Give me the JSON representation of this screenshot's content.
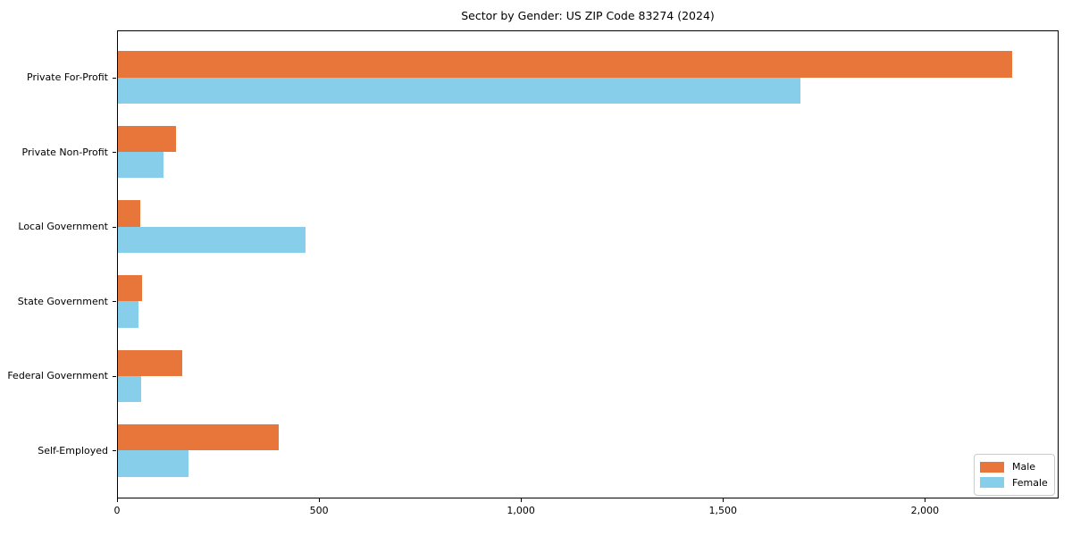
{
  "chart_data": {
    "type": "bar",
    "orientation": "horizontal",
    "title": "Sector by Gender: US ZIP Code 83274 (2024)",
    "categories": [
      "Private For-Profit",
      "Private Non-Profit",
      "Local Government",
      "State Government",
      "Federal Government",
      "Self-Employed"
    ],
    "series": [
      {
        "name": "Male",
        "color": "#E8763B",
        "values": [
          2220,
          145,
          55,
          60,
          160,
          400
        ]
      },
      {
        "name": "Female",
        "color": "#87CEEB",
        "values": [
          1695,
          113,
          465,
          52,
          58,
          175
        ]
      }
    ],
    "xlabel": "",
    "ylabel": "",
    "xlim": [
      0,
      2331
    ],
    "x_ticks": [
      {
        "value": 0,
        "label": "0"
      },
      {
        "value": 500,
        "label": "500"
      },
      {
        "value": 1000,
        "label": "1,000"
      },
      {
        "value": 1500,
        "label": "1,500"
      },
      {
        "value": 2000,
        "label": "2,000"
      }
    ],
    "grid": false,
    "legend_position": "lower right",
    "colors": {
      "axis": "#000000",
      "background": "#ffffff",
      "legend_border": "#cccccc"
    }
  }
}
